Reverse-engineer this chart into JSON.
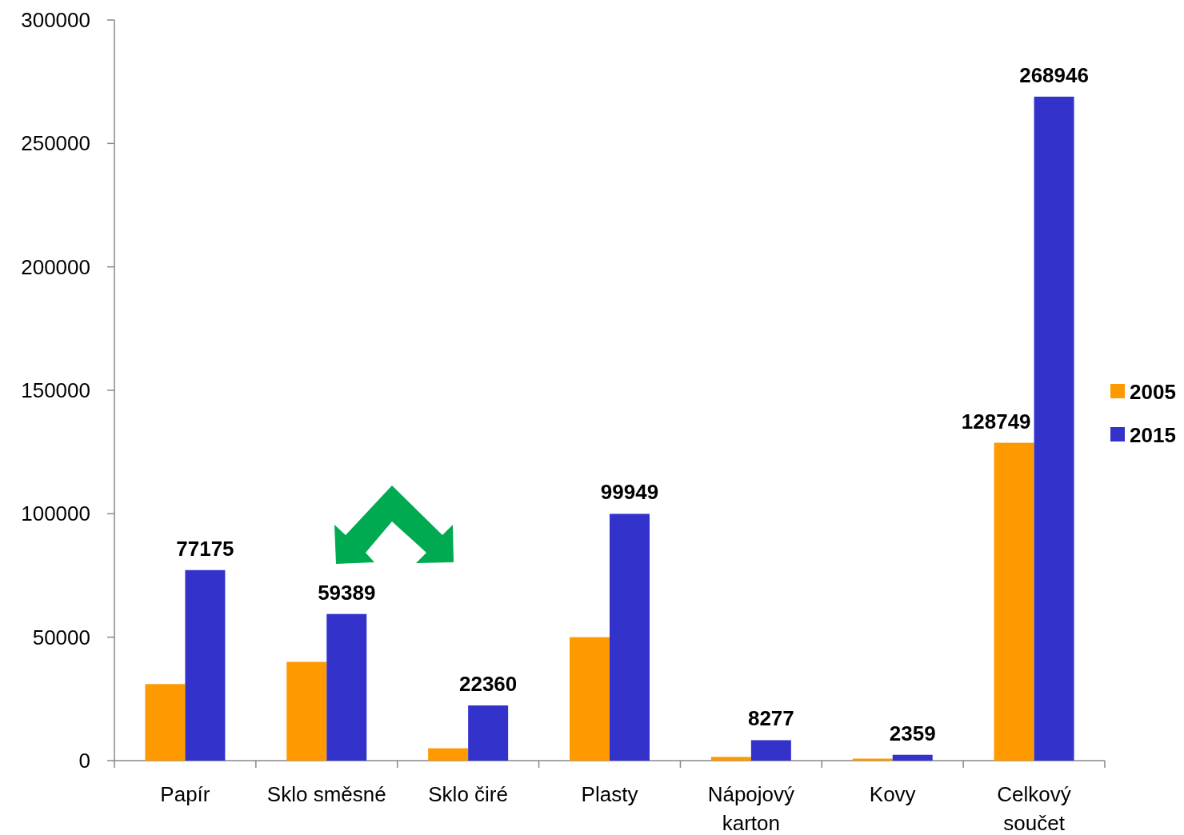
{
  "chart_data": {
    "type": "bar",
    "categories": [
      "Papír",
      "Sklo směsné",
      "Sklo čiré",
      "Plasty",
      "Nápojový karton",
      "Kovy",
      "Celkový součet"
    ],
    "series": [
      {
        "name": "2005",
        "color": "#ff9900",
        "values": [
          31000,
          40000,
          5000,
          50000,
          1500,
          800,
          128749
        ],
        "value_labels": [
          null,
          null,
          null,
          null,
          null,
          null,
          "128749"
        ]
      },
      {
        "name": "2015",
        "color": "#3333cc",
        "values": [
          77175,
          59389,
          22360,
          99949,
          8277,
          2359,
          268946
        ],
        "value_labels": [
          "77175",
          "59389",
          "22360",
          "99949",
          "8277",
          "2359",
          "268946"
        ]
      }
    ],
    "ylim": [
      0,
      300000
    ],
    "yticks": [
      0,
      50000,
      100000,
      150000,
      200000,
      250000,
      300000
    ],
    "grid": false,
    "legend": "right"
  }
}
